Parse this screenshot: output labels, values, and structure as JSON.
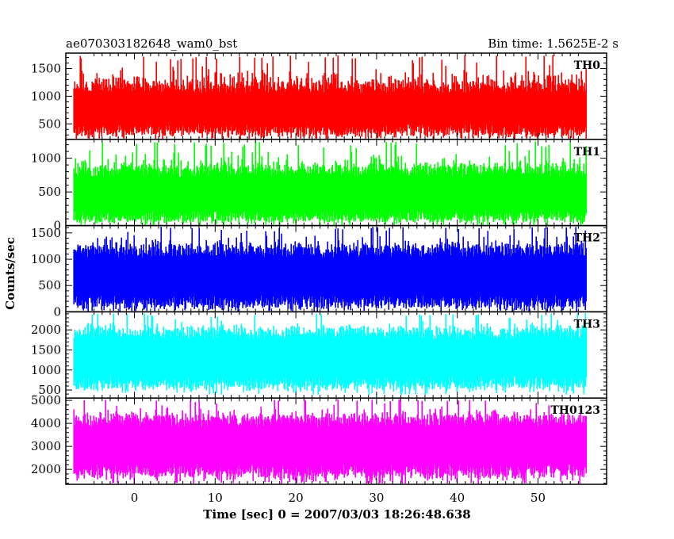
{
  "header": {
    "left_title": "ae070303182648_wam0_bst",
    "right_title": "Bin time: 1.5625E-2 s"
  },
  "chart_data": {
    "type": "line",
    "xlabel": "Time [sec] 0 = 2007/03/03 18:26:48.638",
    "ylabel": "Counts/sec",
    "xlim": [
      -8.5,
      58.5
    ],
    "x_ticks": [
      0,
      10,
      20,
      30,
      40,
      50
    ],
    "x_tick_labels": [
      "0",
      "10",
      "20",
      "30",
      "40",
      "50"
    ],
    "x_data_range": [
      -7.5,
      56
    ],
    "panels": [
      {
        "name": "TH0",
        "color": "#ff0000",
        "ylim": [
          220,
          1780
        ],
        "y_ticks": [
          500,
          1000,
          1500
        ],
        "y_tick_labels": [
          "500",
          "1000",
          "1500"
        ],
        "band": [
          400,
          1150
        ],
        "peak": [
          200,
          1750
        ],
        "seed": 11
      },
      {
        "name": "TH1",
        "color": "#00ff00",
        "ylim": [
          0,
          1280
        ],
        "y_ticks": [
          0,
          500,
          1000
        ],
        "y_tick_labels": [
          "0",
          "500",
          "1000"
        ],
        "band": [
          150,
          800
        ],
        "peak": [
          0,
          1250
        ],
        "seed": 23
      },
      {
        "name": "TH2",
        "color": "#0000ff",
        "ylim": [
          0,
          1640
        ],
        "y_ticks": [
          0,
          500,
          1000,
          1500
        ],
        "y_tick_labels": [
          "0",
          "500",
          "1000",
          "1500"
        ],
        "band": [
          200,
          1150
        ],
        "peak": [
          0,
          1620
        ],
        "seed": 37
      },
      {
        "name": "TH3",
        "color": "#00ffff",
        "ylim": [
          300,
          2450
        ],
        "y_ticks": [
          500,
          1000,
          1500,
          2000
        ],
        "y_tick_labels": [
          "500",
          "1000",
          "1500",
          "2000"
        ],
        "band": [
          700,
          1900
        ],
        "peak": [
          380,
          2420
        ],
        "seed": 53
      },
      {
        "name": "TH0123",
        "color": "#ff00ff",
        "ylim": [
          1350,
          5100
        ],
        "y_ticks": [
          2000,
          3000,
          4000,
          5000
        ],
        "y_tick_labels": [
          "2000",
          "3000",
          "4000",
          "5000"
        ],
        "band": [
          2000,
          4100
        ],
        "peak": [
          1350,
          5050
        ],
        "seed": 71
      }
    ]
  }
}
